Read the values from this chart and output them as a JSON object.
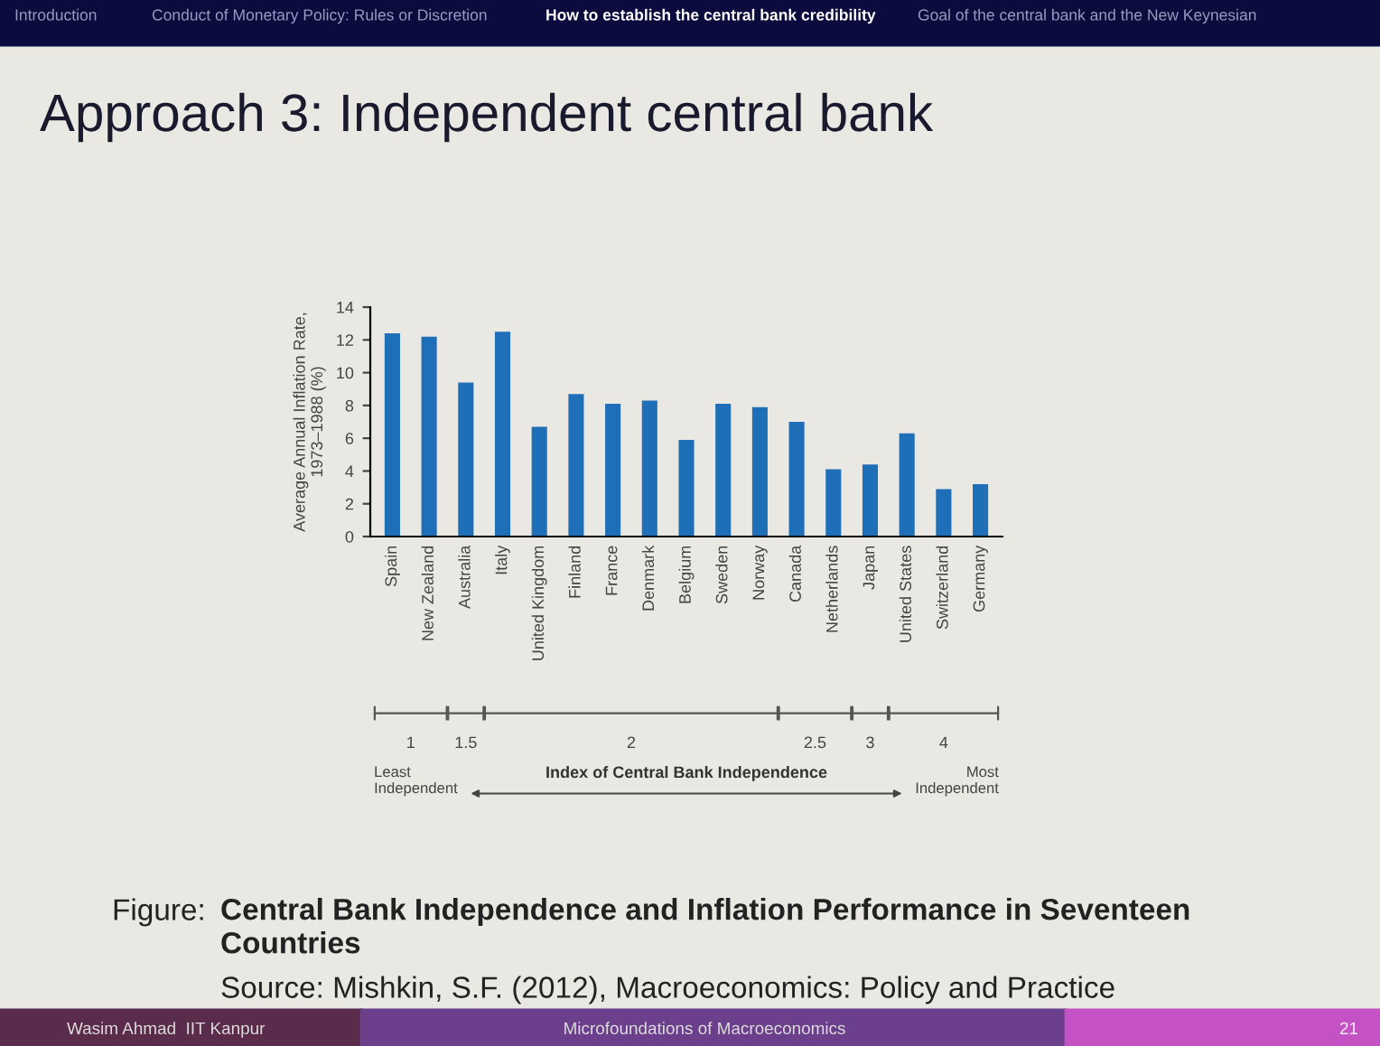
{
  "chart_data": {
    "type": "bar",
    "title": "Approach 3: Independent central bank",
    "categories": [
      "Spain",
      "New Zealand",
      "Australia",
      "Italy",
      "United Kingdom",
      "Finland",
      "France",
      "Denmark",
      "Belgium",
      "Sweden",
      "Norway",
      "Canada",
      "Netherlands",
      "Japan",
      "United States",
      "Switzerland",
      "Germany"
    ],
    "values": [
      12.4,
      12.2,
      9.4,
      12.5,
      6.7,
      8.7,
      8.1,
      8.3,
      5.9,
      8.1,
      7.9,
      7.0,
      4.1,
      4.4,
      6.3,
      2.9,
      3.2
    ],
    "color": "#1f6fb8",
    "ylim": [
      0,
      14
    ],
    "yticks": [
      0,
      2,
      4,
      6,
      8,
      10,
      12,
      14
    ],
    "grid": false,
    "ylabel": "Average Annual Inflation Rate,\n1973–1988 (%)",
    "annotations": [
      "1",
      "1.5",
      "2",
      "2.5",
      "3",
      "4",
      "Least\nIndependent",
      "Most\nIndependent",
      "Figure:",
      "Central Bank Independence and Inflation Performance in Seventeen\nCountries",
      "Source: Mishkin, S.F. (2012), Macroeconomics: Policy and Practice",
      "Introduction",
      "Conduct of Monetary Policy: Rules or Discretion",
      "How to establish the central bank credibility",
      "Goal of the central bank and the New Keynesian",
      "Wasim Ahmad  IIT Kanpur",
      "Microfoundations of Macroeconomics",
      "21",
      "Index of Central Bank Independence"
    ]
  }
}
